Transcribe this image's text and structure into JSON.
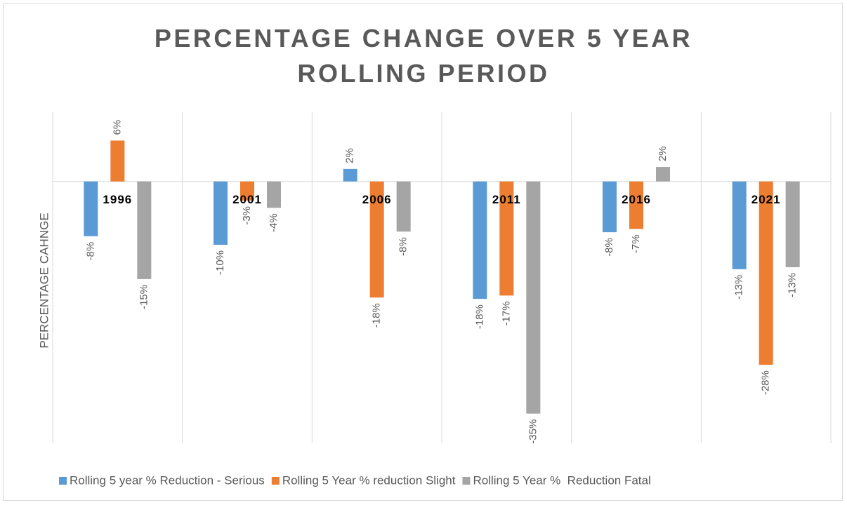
{
  "chart_data": {
    "type": "bar",
    "title": "PERCENTAGE CHANGE OVER 5 YEAR ROLLING PERIOD",
    "y_label": "PERCENTAGE CAHNGE",
    "categories": [
      "1996",
      "2001",
      "2006",
      "2011",
      "2016",
      "2021"
    ],
    "series": [
      {
        "name": "Rolling 5 year % Reduction - Serious",
        "color": "#5b9bd5",
        "values": [
          -8.3,
          -9.6,
          1.9,
          -17.8,
          -7.7,
          -13.3
        ],
        "value_labels": [
          "-8%",
          "-10%",
          "2%",
          "-18%",
          "-8%",
          "-13%"
        ]
      },
      {
        "name": "Rolling 5 Year % reduction Slight",
        "color": "#ed7d31",
        "values": [
          6.2,
          -2.9,
          -17.6,
          -17.3,
          -7.2,
          -27.8
        ],
        "value_labels": [
          "6%",
          "-3%",
          "-18%",
          "-17%",
          "-7%",
          "-28%"
        ]
      },
      {
        "name": "Rolling 5 Year %  Reduction Fatal",
        "color": "#a5a5a5",
        "values": [
          -14.8,
          -4.0,
          -7.6,
          -35.2,
          2.2,
          -13.0
        ],
        "value_labels": [
          "-15%",
          "-4%",
          "-8%",
          "-35%",
          "2%",
          "-13%"
        ]
      }
    ],
    "ylim": [
      -39.7,
      10.5
    ]
  }
}
